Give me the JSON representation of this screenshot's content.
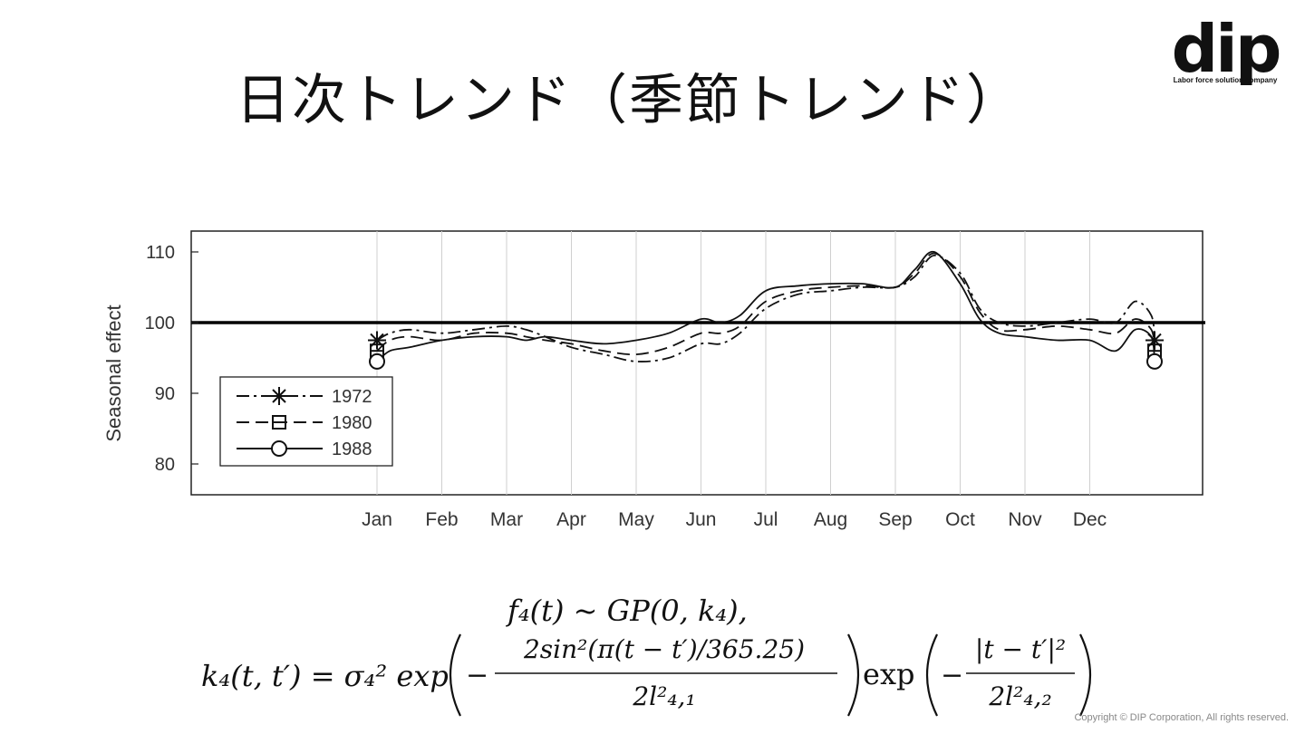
{
  "slide": {
    "title": "日次トレンド（季節トレンド）",
    "logo_text": "dip",
    "logo_tagline": "Labor force solution company",
    "copyright": "Copyright © DIP Corporation, All rights reserved."
  },
  "formula": {
    "line1": "f₄(t) ~ GP(0, k₄),",
    "lhs": "k₄(t, t′) = σ₄² exp",
    "frac1_num": "2sin²(π(t − t′)/365.25)",
    "frac1_den": "2l²₄,₁",
    "exp2": "exp",
    "frac2_num": "|t − t′|²",
    "frac2_den": "2l²₄,₂"
  },
  "chart_data": {
    "type": "line",
    "ylabel": "Seasonal effect",
    "ylim": [
      76,
      113
    ],
    "yticks": [
      80,
      90,
      100,
      110
    ],
    "reference_line": 100,
    "x_categories": [
      "Jan",
      "Feb",
      "Mar",
      "Apr",
      "May",
      "Jun",
      "Jul",
      "Aug",
      "Sep",
      "Oct",
      "Nov",
      "Dec"
    ],
    "x_range_months": [
      -1.8,
      13.7
    ],
    "legend_position": "lower-left",
    "grid": "vertical",
    "series": [
      {
        "name": "1972",
        "marker": "star",
        "dash": "dashdot",
        "x": [
          1.0,
          1.2,
          1.5,
          2.0,
          2.5,
          3.0,
          3.3,
          3.6,
          4.0,
          4.5,
          5.0,
          5.5,
          6.0,
          6.3,
          6.6,
          7.0,
          7.5,
          8.0,
          8.5,
          9.0,
          9.3,
          9.6,
          10.0,
          10.3,
          10.6,
          11.0,
          11.5,
          12.0,
          12.4,
          12.7,
          12.95,
          13.0
        ],
        "y": [
          97.5,
          98.5,
          99.0,
          98.5,
          99.0,
          99.5,
          99.0,
          98.0,
          96.5,
          95.5,
          94.5,
          95.0,
          97.0,
          97.0,
          98.5,
          102.0,
          104.0,
          104.5,
          105.0,
          105.0,
          106.5,
          109.5,
          107.0,
          102.0,
          100.0,
          99.5,
          100.0,
          100.5,
          100.0,
          103.0,
          101.0,
          97.5
        ]
      },
      {
        "name": "1980",
        "marker": "square",
        "dash": "dashed",
        "x": [
          1.0,
          1.2,
          1.5,
          2.0,
          2.5,
          3.0,
          3.3,
          3.6,
          4.0,
          4.5,
          5.0,
          5.5,
          6.0,
          6.3,
          6.6,
          7.0,
          7.5,
          8.0,
          8.5,
          9.0,
          9.3,
          9.6,
          10.0,
          10.3,
          10.6,
          11.0,
          11.5,
          12.0,
          12.4,
          12.7,
          12.95,
          13.0
        ],
        "y": [
          96.0,
          97.5,
          98.0,
          97.5,
          98.5,
          98.5,
          98.0,
          97.5,
          97.0,
          96.0,
          95.5,
          96.5,
          98.5,
          98.5,
          99.5,
          103.0,
          104.5,
          105.0,
          105.2,
          105.0,
          107.0,
          109.8,
          106.5,
          101.5,
          99.0,
          99.0,
          99.5,
          99.0,
          98.5,
          100.5,
          99.0,
          96.0
        ]
      },
      {
        "name": "1988",
        "marker": "circle",
        "dash": "solid",
        "x": [
          1.0,
          1.2,
          1.5,
          2.0,
          2.5,
          3.0,
          3.3,
          3.6,
          4.0,
          4.5,
          5.0,
          5.5,
          6.0,
          6.3,
          6.6,
          7.0,
          7.5,
          8.0,
          8.5,
          9.0,
          9.3,
          9.6,
          10.0,
          10.3,
          10.6,
          11.0,
          11.5,
          12.0,
          12.4,
          12.7,
          12.95,
          13.0
        ],
        "y": [
          94.5,
          96.0,
          96.5,
          97.5,
          98.0,
          98.0,
          97.5,
          98.0,
          97.5,
          97.0,
          97.5,
          98.5,
          100.5,
          100.0,
          101.0,
          104.5,
          105.2,
          105.5,
          105.5,
          105.0,
          107.5,
          110.0,
          105.5,
          100.5,
          98.5,
          98.0,
          97.5,
          97.5,
          96.0,
          99.0,
          98.0,
          94.5
        ]
      }
    ]
  }
}
